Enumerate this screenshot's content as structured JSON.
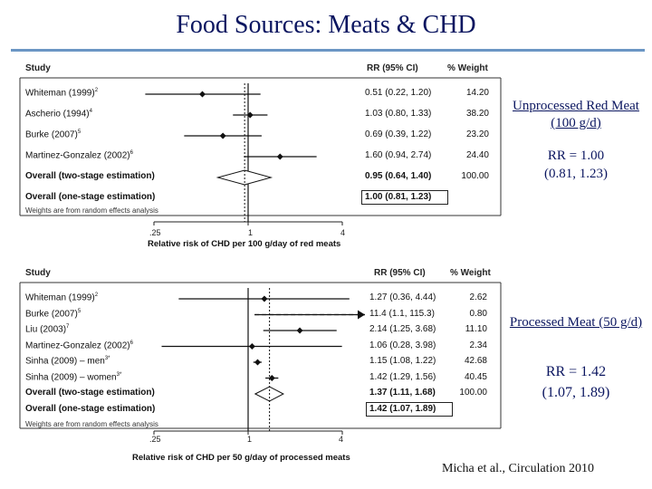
{
  "title": "Food Sources:  Meats & CHD",
  "panel1": {
    "header": {
      "study": "Study",
      "rr": "RR (95% CI)",
      "weight": "% Weight"
    },
    "rows": [
      {
        "label": "Whiteman (1999)",
        "sup": "2",
        "ci": "0.51 (0.22, 1.20)",
        "weight": "14.20",
        "rr": 0.51,
        "lo": 0.22,
        "hi": 1.2,
        "bold": false
      },
      {
        "label": "Ascherio (1994)",
        "sup": "4",
        "ci": "1.03 (0.80, 1.33)",
        "weight": "38.20",
        "rr": 1.03,
        "lo": 0.8,
        "hi": 1.33,
        "bold": false
      },
      {
        "label": "Burke (2007)",
        "sup": "5",
        "ci": "0.69 (0.39, 1.22)",
        "weight": "23.20",
        "rr": 0.69,
        "lo": 0.39,
        "hi": 1.22,
        "bold": false
      },
      {
        "label": "Martinez-Gonzalez (2002)",
        "sup": "6",
        "ci": "1.60 (0.94, 2.74)",
        "weight": "24.40",
        "rr": 1.6,
        "lo": 0.94,
        "hi": 2.74,
        "bold": false
      },
      {
        "label": "Overall (two-stage estimation)",
        "sup": "",
        "ci": "0.95 (0.64, 1.40)",
        "weight": "100.00",
        "rr": 0.95,
        "lo": 0.64,
        "hi": 1.4,
        "bold": true,
        "diamond": true
      },
      {
        "label": "Overall (one-stage estimation)",
        "sup": "",
        "ci": "1.00 (0.81, 1.23)",
        "weight": "",
        "bold": true,
        "boxed": true
      }
    ],
    "note": "Weights are from random effects analysis",
    "ticks": [
      ".25",
      "1",
      "4"
    ],
    "xlabel": "Relative risk of CHD per 100 g/day of red meats"
  },
  "panel2": {
    "header": {
      "study": "Study",
      "rr": "RR (95% CI)",
      "weight": "% Weight"
    },
    "rows": [
      {
        "label": "Whiteman (1999)",
        "sup": "2",
        "ci": "1.27 (0.36, 4.44)",
        "weight": "2.62",
        "rr": 1.27,
        "lo": 0.36,
        "hi": 4.44,
        "bold": false
      },
      {
        "label": "Burke (2007)",
        "sup": "5",
        "ci": "11.4 (1.1, 115.3)",
        "weight": "0.80",
        "rr": 11.4,
        "lo": 1.1,
        "hi": 115.3,
        "bold": false
      },
      {
        "label": "Liu (2003)",
        "sup": "7",
        "ci": "2.14 (1.25, 3.68)",
        "weight": "11.10",
        "rr": 2.14,
        "lo": 1.25,
        "hi": 3.68,
        "bold": false
      },
      {
        "label": "Martinez-Gonzalez (2002)",
        "sup": "6",
        "ci": "1.06 (0.28, 3.98)",
        "weight": "2.34",
        "rr": 1.06,
        "lo": 0.28,
        "hi": 3.98,
        "bold": false
      },
      {
        "label": "Sinha (2009) – men",
        "sup": "3*",
        "ci": "1.15 (1.08, 1.22)",
        "weight": "42.68",
        "rr": 1.15,
        "lo": 1.08,
        "hi": 1.22,
        "bold": false
      },
      {
        "label": "Sinha (2009) – women",
        "sup": "3*",
        "ci": "1.42 (1.29, 1.56)",
        "weight": "40.45",
        "rr": 1.42,
        "lo": 1.29,
        "hi": 1.56,
        "bold": false
      },
      {
        "label": "Overall (two-stage estimation)",
        "sup": "",
        "ci": "1.37 (1.11, 1.68)",
        "weight": "100.00",
        "rr": 1.37,
        "lo": 1.11,
        "hi": 1.68,
        "bold": true,
        "diamond": true
      },
      {
        "label": "Overall (one-stage estimation)",
        "sup": "",
        "ci": "1.42 (1.07, 1.89)",
        "weight": "",
        "bold": true,
        "boxed": true
      }
    ],
    "note": "Weights are from random effects analysis",
    "ticks": [
      ".25",
      "1",
      "4"
    ],
    "xlabel": "Relative risk of CHD per 50 g/day of processed meats"
  },
  "side1": {
    "heading": "Unprocessed Red Meat (100 g/d)",
    "rr": "RR = 1.00",
    "ci": "(0.81, 1.23)"
  },
  "side2": {
    "heading": "Processed Meat (50 g/d)",
    "rr": "RR = 1.42",
    "ci": "(1.07, 1.89)"
  },
  "citation": "Micha et al., Circulation 2010",
  "colors": {
    "title": "#0b1660",
    "rule": "#6b96c4"
  }
}
